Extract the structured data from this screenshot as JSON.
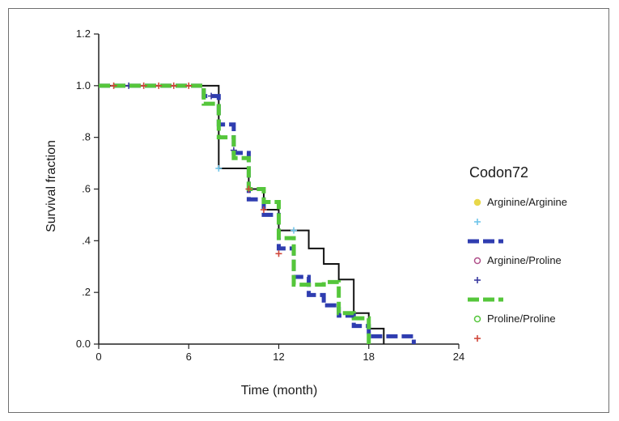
{
  "chart_data": {
    "type": "line",
    "subtype": "kaplan-meier step",
    "xlabel": "Time (month)",
    "ylabel": "Survival fraction",
    "xlim": [
      0,
      24
    ],
    "ylim": [
      0,
      1.2
    ],
    "xticks": [
      0,
      6,
      12,
      18,
      24
    ],
    "xtick_labels": [
      "0",
      "6",
      "12",
      "18",
      "24"
    ],
    "yticks": [
      0,
      0.2,
      0.4,
      0.6,
      0.8,
      1.0,
      1.2
    ],
    "ytick_labels": [
      "0.0",
      ".2",
      ".4",
      ".6",
      ".8",
      "1.0",
      "1.2"
    ],
    "grid": false,
    "legend": {
      "title": "Codon72",
      "placement": "right",
      "entries": [
        {
          "label": "Arginine/Arginine",
          "kind": "marker",
          "marker": "circle",
          "color": "#e8d84a"
        },
        {
          "label": "",
          "kind": "marker",
          "marker": "plus",
          "color": "#6ec4ea"
        },
        {
          "label": "",
          "kind": "line",
          "dash": "dashed",
          "color": "#2f3db0"
        },
        {
          "label": "Arginine/Proline",
          "kind": "marker",
          "marker": "circle",
          "color": "#b0508a"
        },
        {
          "label": "",
          "kind": "marker",
          "marker": "plus",
          "color": "#3a3aa0"
        },
        {
          "label": "",
          "kind": "line",
          "dash": "dashed",
          "color": "#55c63b"
        },
        {
          "label": "Proline/Proline",
          "kind": "marker",
          "marker": "circle",
          "color": "#55c63b"
        },
        {
          "label": "",
          "kind": "marker",
          "marker": "plus",
          "color": "#d0473a"
        }
      ]
    },
    "series": [
      {
        "color": "#111111",
        "dash": "solid",
        "steps": [
          [
            0,
            1.0
          ],
          [
            8,
            0.68
          ],
          [
            10,
            0.6
          ],
          [
            11,
            0.52
          ],
          [
            12,
            0.44
          ],
          [
            14,
            0.37
          ],
          [
            15,
            0.31
          ],
          [
            16,
            0.25
          ],
          [
            17,
            0.12
          ],
          [
            18,
            0.06
          ],
          [
            19,
            0.0
          ]
        ],
        "censored": [
          [
            8,
            0.68
          ],
          [
            13,
            0.44
          ]
        ],
        "censor_color": "#6ec4ea"
      },
      {
        "color": "#2f3db0",
        "dash": "dashed",
        "steps": [
          [
            0,
            1.0
          ],
          [
            7,
            0.96
          ],
          [
            8,
            0.85
          ],
          [
            9,
            0.74
          ],
          [
            10,
            0.56
          ],
          [
            11,
            0.5
          ],
          [
            12,
            0.37
          ],
          [
            13,
            0.26
          ],
          [
            14,
            0.19
          ],
          [
            15,
            0.15
          ],
          [
            16,
            0.11
          ],
          [
            17,
            0.07
          ],
          [
            18,
            0.03
          ],
          [
            21,
            0.0
          ]
        ],
        "censored": [
          [
            2,
            1.0
          ],
          [
            7.5,
            0.96
          ],
          [
            9,
            0.75
          ]
        ],
        "censor_color": "#3a3aa0"
      },
      {
        "color": "#55c63b",
        "dash": "dashed",
        "steps": [
          [
            0,
            1.0
          ],
          [
            7,
            0.93
          ],
          [
            8,
            0.8
          ],
          [
            9,
            0.72
          ],
          [
            10,
            0.6
          ],
          [
            11,
            0.55
          ],
          [
            12,
            0.41
          ],
          [
            13,
            0.23
          ],
          [
            15,
            0.24
          ],
          [
            16,
            0.12
          ],
          [
            17,
            0.1
          ],
          [
            18,
            0.0
          ]
        ],
        "censored": [
          [
            1,
            1.0
          ],
          [
            3,
            1.0
          ],
          [
            4,
            1.0
          ],
          [
            5,
            1.0
          ],
          [
            6,
            1.0
          ],
          [
            10,
            0.6
          ],
          [
            11,
            0.52
          ],
          [
            12,
            0.35
          ]
        ],
        "censor_color": "#d0473a"
      }
    ]
  }
}
